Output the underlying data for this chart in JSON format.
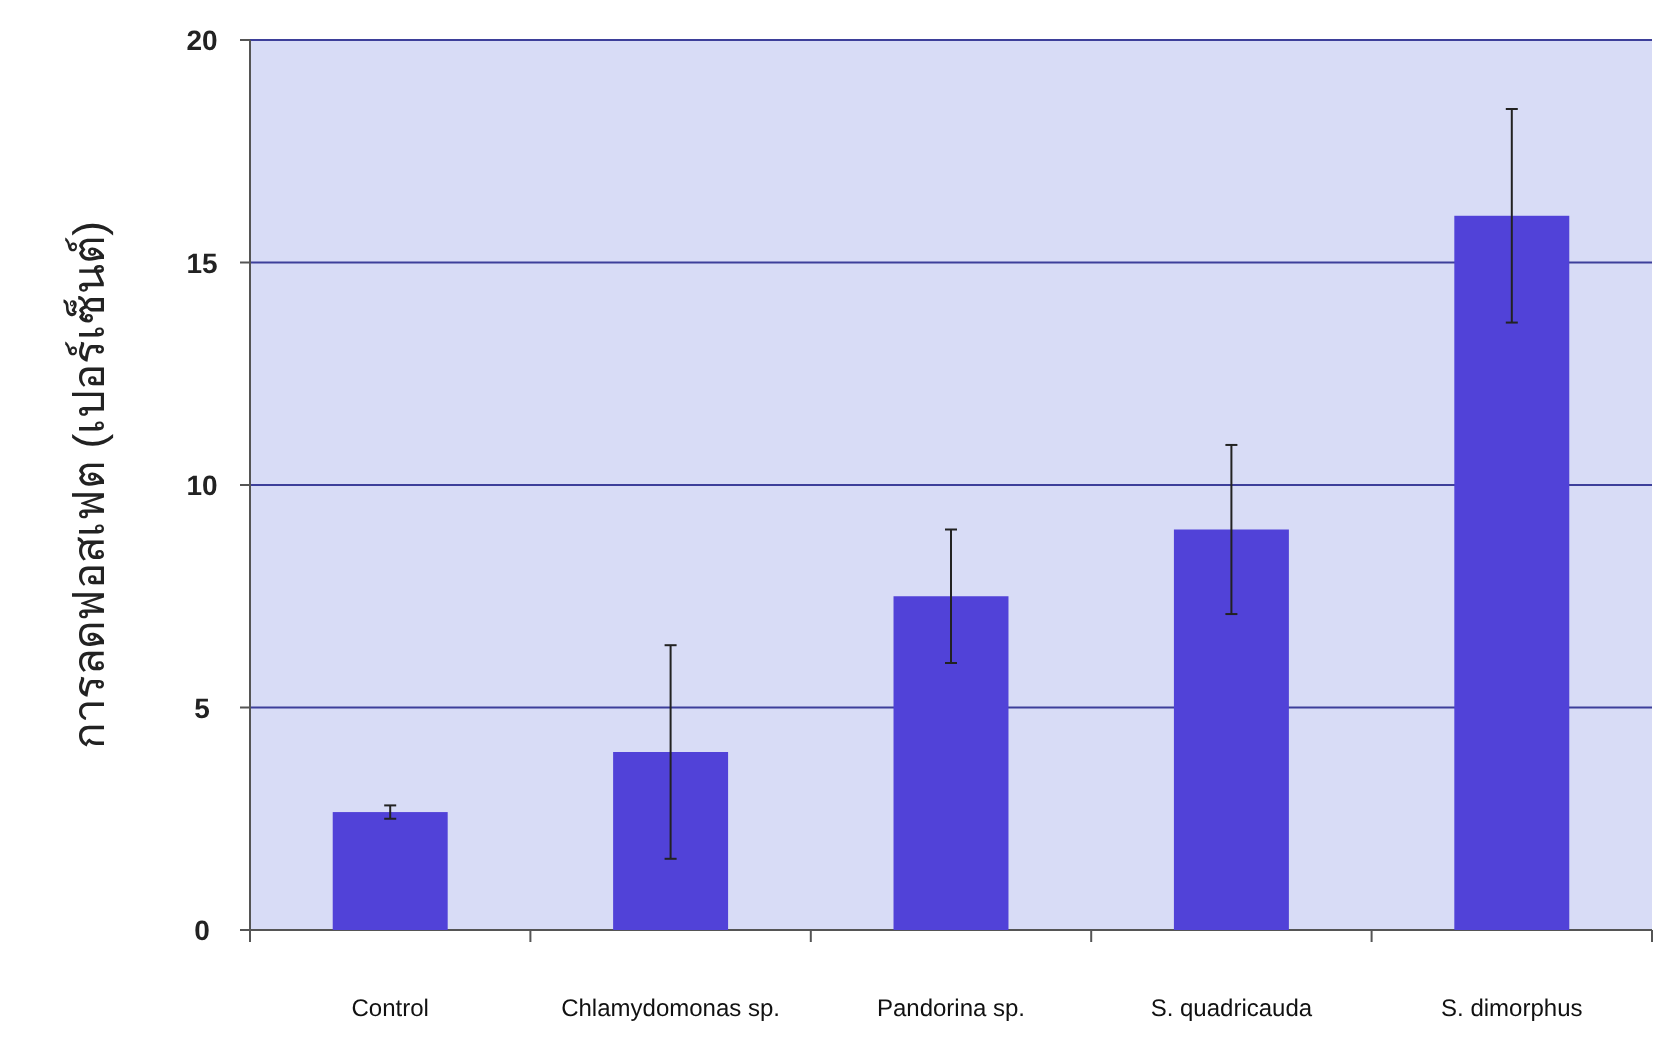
{
  "chart_data": {
    "type": "bar",
    "ylabel": "การลดฟอสเฟต (เปอร์เซ็นต์)",
    "categories": [
      "Control",
      "Chlamydomonas sp.",
      "Pandorina sp.",
      "S. quadricauda",
      "S. dimorphus"
    ],
    "values": [
      2.65,
      4.0,
      7.5,
      9.0,
      16.05
    ],
    "errors": [
      0.15,
      2.4,
      1.5,
      1.9,
      2.4
    ],
    "color": "#5142d8",
    "ylim": [
      0,
      20
    ],
    "yticks": [
      0,
      5,
      10,
      15,
      20
    ],
    "grid": "y"
  }
}
